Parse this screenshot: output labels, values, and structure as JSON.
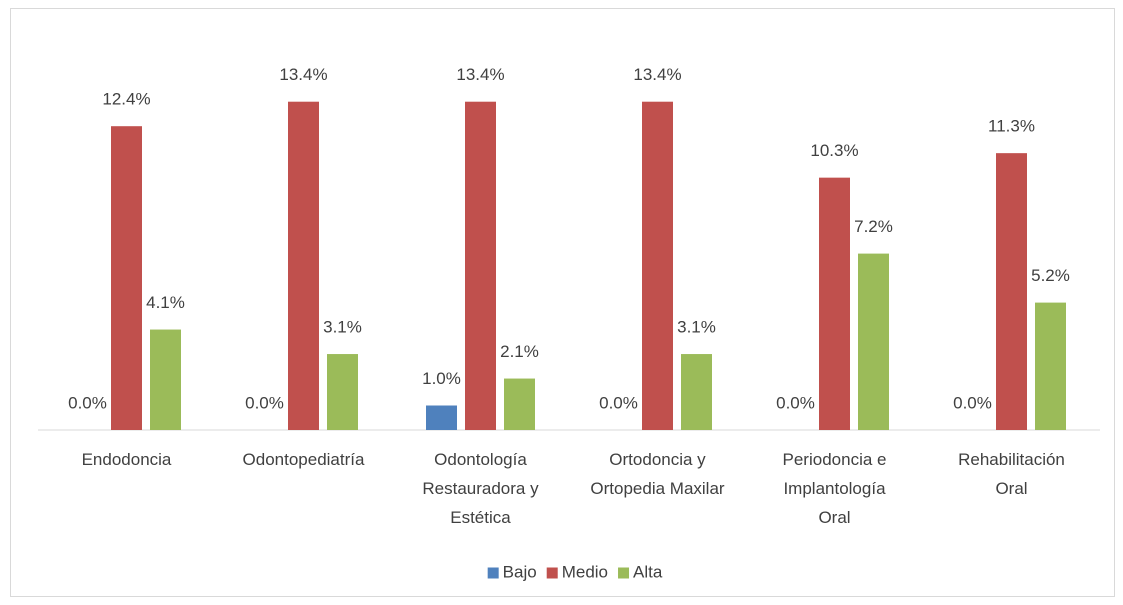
{
  "chart_data": {
    "type": "bar",
    "categories": [
      "Endodoncia",
      "Odontopediatría",
      "Odontología Restauradora y Estética",
      "Ortodoncia y Ortopedia Maxilar",
      "Periodoncia e Implantología Oral",
      "Rehabilitación Oral"
    ],
    "series": [
      {
        "name": "Bajo",
        "color": "#4f81bd",
        "values": [
          0.0,
          0.0,
          1.0,
          0.0,
          0.0,
          0.0
        ],
        "value_labels": [
          "0.0%",
          "0.0%",
          "1.0%",
          "0.0%",
          "0.0%",
          "0.0%"
        ]
      },
      {
        "name": "Medio",
        "color": "#c0504d",
        "values": [
          12.4,
          13.4,
          13.4,
          13.4,
          10.3,
          11.3
        ],
        "value_labels": [
          "12.4%",
          "13.4%",
          "13.4%",
          "13.4%",
          "10.3%",
          "11.3%"
        ]
      },
      {
        "name": "Alta",
        "color": "#9bbb59",
        "values": [
          4.1,
          3.1,
          2.1,
          3.1,
          7.2,
          5.2
        ],
        "value_labels": [
          "4.1%",
          "3.1%",
          "2.1%",
          "3.1%",
          "7.2%",
          "5.2%"
        ]
      }
    ],
    "ylim": [
      0,
      14
    ],
    "legend": "bottom"
  }
}
